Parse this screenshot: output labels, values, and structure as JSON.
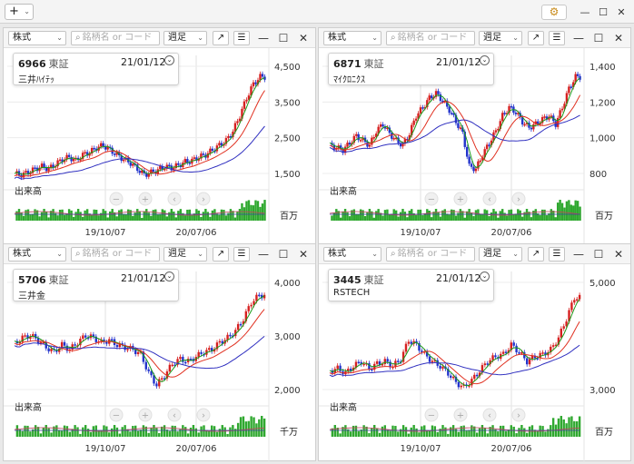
{
  "toolbar": {
    "add_label": "+",
    "add_chevron": "⌄"
  },
  "common": {
    "type_select": "株式",
    "search_placeholder": "銘柄名 or コード",
    "period_select": "週足",
    "volume_label": "出来高",
    "x_labels": [
      "19/10/07",
      "20/07/06"
    ]
  },
  "panels": [
    {
      "code": "6966",
      "exchange": "東証",
      "date": "21/01/12",
      "name": "三井ﾊｲﾃｯ",
      "y_labels": [
        "4,500",
        "3,500",
        "2,500",
        "1,500"
      ],
      "vol_unit": "百万"
    },
    {
      "code": "6871",
      "exchange": "東証",
      "date": "21/01/12",
      "name": "ﾏｲｸﾛﾆｸｽ",
      "y_labels": [
        "1,400",
        "1,200",
        "1,000",
        "800"
      ],
      "vol_unit": "百万"
    },
    {
      "code": "5706",
      "exchange": "東証",
      "date": "21/01/12",
      "name": "三井金",
      "y_labels": [
        "4,000",
        "3,000",
        "2,000"
      ],
      "vol_unit": "千万"
    },
    {
      "code": "3445",
      "exchange": "東証",
      "date": "21/01/12",
      "name": "RSTECH",
      "y_labels": [
        "5,000",
        "3,000"
      ],
      "vol_unit": "百万"
    }
  ],
  "colors": {
    "up": "#d62020",
    "down": "#2233cc",
    "ma_short": "#1a9a1a",
    "ma_mid": "#e03020",
    "ma_long": "#3030c0",
    "volume": "#2fa82f"
  }
}
